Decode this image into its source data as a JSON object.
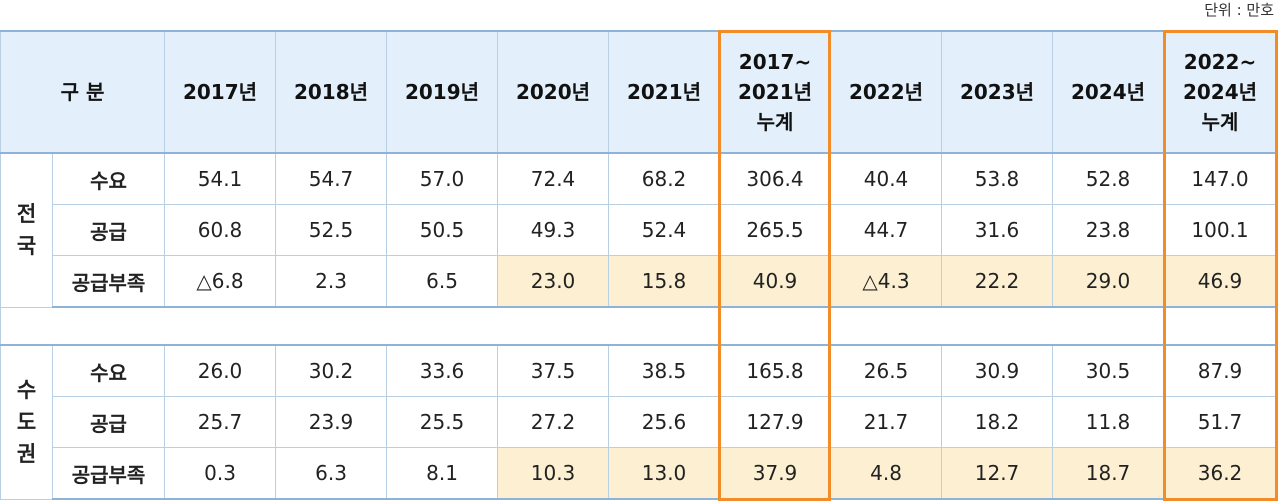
{
  "unit_label": "단위 : 만호",
  "header": {
    "category": "구 분",
    "years": [
      "2017년",
      "2018년",
      "2019년",
      "2020년",
      "2021년",
      "2017~\n2021년\n누계",
      "2022년",
      "2023년",
      "2024년",
      "2022~\n2024년\n누계"
    ]
  },
  "sections": [
    {
      "region": "전\n국",
      "rows": [
        {
          "label": "수요",
          "values": [
            "54.1",
            "54.7",
            "57.0",
            "72.4",
            "68.2",
            "306.4",
            "40.4",
            "53.8",
            "52.8",
            "147.0"
          ]
        },
        {
          "label": "공급",
          "values": [
            "60.8",
            "52.5",
            "50.5",
            "49.3",
            "52.4",
            "265.5",
            "44.7",
            "31.6",
            "23.8",
            "100.1"
          ]
        },
        {
          "label": "공급부족",
          "values": [
            "△6.8",
            "2.3",
            "6.5",
            "23.0",
            "15.8",
            "40.9",
            "△4.3",
            "22.2",
            "29.0",
            "46.9"
          ]
        }
      ]
    },
    {
      "region": "수\n도\n권",
      "rows": [
        {
          "label": "수요",
          "values": [
            "26.0",
            "30.2",
            "33.6",
            "37.5",
            "38.5",
            "165.8",
            "26.5",
            "30.9",
            "30.5",
            "87.9"
          ]
        },
        {
          "label": "공급",
          "values": [
            "25.7",
            "23.9",
            "25.5",
            "27.2",
            "25.6",
            "127.9",
            "21.7",
            "18.2",
            "11.8",
            "51.7"
          ]
        },
        {
          "label": "공급부족",
          "values": [
            "0.3",
            "6.3",
            "8.1",
            "10.3",
            "13.0",
            "37.9",
            "4.8",
            "12.7",
            "18.7",
            "36.2"
          ]
        }
      ]
    }
  ],
  "highlight_color": "#fdf0d2",
  "total_box_color": "#f28c28"
}
